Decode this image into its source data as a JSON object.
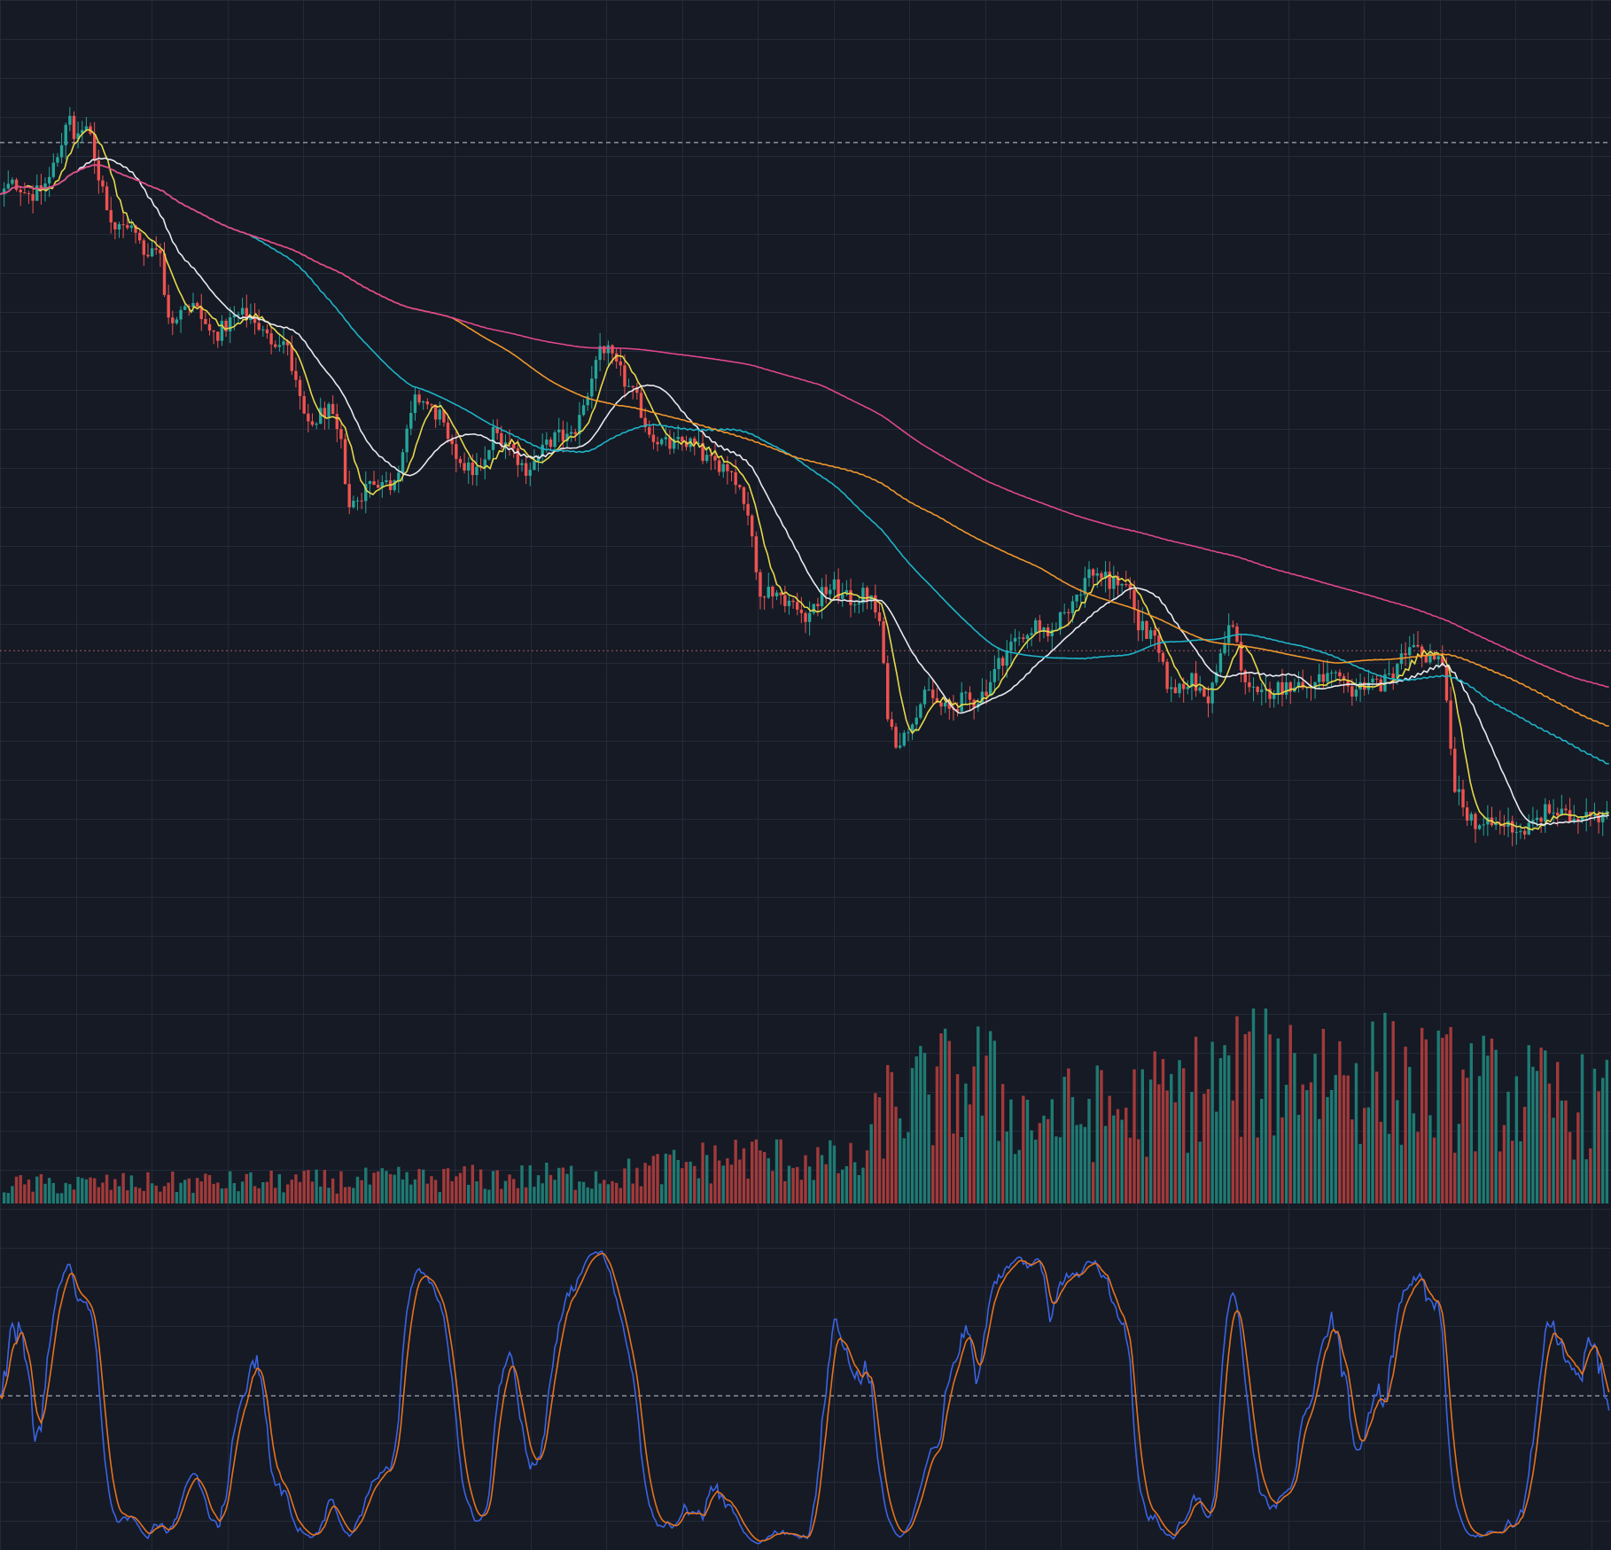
{
  "chart_data": {
    "type": "candlestick",
    "theme": {
      "background": "#151a25",
      "grid": "#242a38",
      "up": "#26a69a",
      "down": "#ef5350",
      "up_volume": "#1f7a72",
      "down_volume": "#a23a3a"
    },
    "grid": true,
    "price_panel": {
      "ylim": [
        0,
        1000
      ],
      "reference_lines": [
        {
          "name": "high-level-line",
          "value": 894,
          "color": "#c8ccd6",
          "style": "dashed"
        },
        {
          "name": "last-price-line",
          "value": 391,
          "color": "#b0575a",
          "style": "dotted"
        }
      ],
      "price_anchors": [
        [
          0,
          840
        ],
        [
          20,
          850
        ],
        [
          35,
          848
        ],
        [
          48,
          855
        ],
        [
          58,
          880
        ],
        [
          66,
          925
        ],
        [
          72,
          900
        ],
        [
          78,
          915
        ],
        [
          88,
          900
        ],
        [
          95,
          860
        ],
        [
          110,
          810
        ],
        [
          125,
          820
        ],
        [
          140,
          780
        ],
        [
          158,
          790
        ],
        [
          162,
          720
        ],
        [
          178,
          735
        ],
        [
          205,
          710
        ],
        [
          230,
          715
        ],
        [
          248,
          725
        ],
        [
          262,
          700
        ],
        [
          278,
          690
        ],
        [
          300,
          615
        ],
        [
          318,
          625
        ],
        [
          332,
          595
        ],
        [
          340,
          540
        ],
        [
          356,
          550
        ],
        [
          380,
          560
        ],
        [
          395,
          600
        ],
        [
          405,
          635
        ],
        [
          428,
          630
        ],
        [
          438,
          590
        ],
        [
          455,
          565
        ],
        [
          470,
          575
        ],
        [
          480,
          610
        ],
        [
          495,
          590
        ],
        [
          510,
          575
        ],
        [
          530,
          590
        ],
        [
          555,
          605
        ],
        [
          570,
          640
        ],
        [
          585,
          690
        ],
        [
          605,
          670
        ],
        [
          618,
          640
        ],
        [
          630,
          605
        ],
        [
          650,
          600
        ],
        [
          672,
          590
        ],
        [
          700,
          580
        ],
        [
          715,
          560
        ],
        [
          728,
          530
        ],
        [
          738,
          460
        ],
        [
          760,
          440
        ],
        [
          790,
          432
        ],
        [
          812,
          452
        ],
        [
          825,
          448
        ],
        [
          845,
          440
        ],
        [
          857,
          415
        ],
        [
          862,
          345
        ],
        [
          870,
          310
        ],
        [
          880,
          305
        ],
        [
          905,
          352
        ],
        [
          925,
          330
        ],
        [
          945,
          340
        ],
        [
          962,
          362
        ],
        [
          978,
          382
        ],
        [
          995,
          412
        ],
        [
          1010,
          420
        ],
        [
          1020,
          392
        ],
        [
          1030,
          420
        ],
        [
          1045,
          450
        ],
        [
          1060,
          465
        ],
        [
          1080,
          458
        ],
        [
          1090,
          470
        ],
        [
          1100,
          450
        ],
        [
          1108,
          408
        ],
        [
          1125,
          400
        ],
        [
          1140,
          352
        ],
        [
          1160,
          357
        ],
        [
          1175,
          348
        ],
        [
          1190,
          388
        ],
        [
          1198,
          415
        ],
        [
          1210,
          368
        ],
        [
          1225,
          348
        ],
        [
          1245,
          348
        ],
        [
          1260,
          365
        ],
        [
          1280,
          354
        ],
        [
          1300,
          364
        ],
        [
          1322,
          352
        ],
        [
          1345,
          360
        ],
        [
          1360,
          382
        ],
        [
          1380,
          385
        ],
        [
          1398,
          392
        ],
        [
          1405,
          370
        ],
        [
          1415,
          250
        ],
        [
          1425,
          230
        ],
        [
          1440,
          225
        ],
        [
          1460,
          212
        ],
        [
          1480,
          218
        ],
        [
          1500,
          224
        ],
        [
          1520,
          230
        ],
        [
          1540,
          232
        ],
        [
          1555,
          225
        ],
        [
          1567,
          228
        ]
      ],
      "moving_averages": [
        {
          "name": "ma-fast",
          "color": "#e6d84a",
          "period": 6
        },
        {
          "name": "ma-mid",
          "color": "#e9e9ee",
          "period": 18
        },
        {
          "name": "ma-slow",
          "color": "#1fb3c6",
          "period": 60
        },
        {
          "name": "ma-long",
          "color": "#f0962c",
          "period": 110
        },
        {
          "name": "ma-longest",
          "color": "#e0468d",
          "period": 200
        }
      ]
    },
    "volume_panel": {
      "anchors": [
        [
          0,
          12
        ],
        [
          300,
          14
        ],
        [
          600,
          18
        ],
        [
          720,
          30
        ],
        [
          840,
          25
        ],
        [
          860,
          60
        ],
        [
          950,
          80
        ],
        [
          1000,
          55
        ],
        [
          1100,
          60
        ],
        [
          1200,
          80
        ],
        [
          1250,
          90
        ],
        [
          1400,
          75
        ],
        [
          1567,
          60
        ]
      ]
    },
    "oscillator_panel": {
      "ylim": [
        0,
        100
      ],
      "reference_lines": [
        {
          "name": "midline",
          "value": 50,
          "color": "#c8ccd6",
          "style": "dashed"
        }
      ],
      "series": [
        {
          "name": "k-line",
          "color": "#3b63e0"
        },
        {
          "name": "d-line",
          "color": "#e5721f"
        }
      ]
    }
  }
}
